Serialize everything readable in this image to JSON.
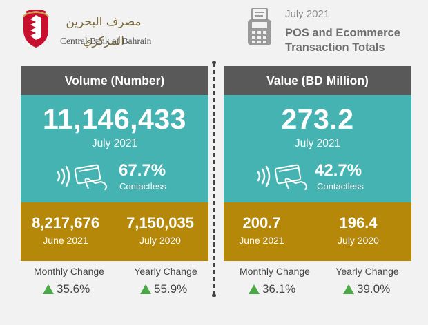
{
  "header": {
    "bank_name_ar": "مصرف البحرين المركزي",
    "bank_name_en": "Central Bank of Bahrain",
    "period": "July 2021",
    "title": "POS and Ecommerce Transaction Totals"
  },
  "colors": {
    "header_gray": "#595959",
    "teal": "#45b3b1",
    "gold": "#b5880a",
    "up_green": "#4aa847"
  },
  "volume": {
    "heading": "Volume (Number)",
    "main_value": "11,146,433",
    "main_period": "July 2021",
    "contactless_pct": "67.7%",
    "contactless_label": "Contactless",
    "compare_1_value": "8,217,676",
    "compare_1_period": "June 2021",
    "compare_2_value": "7,150,035",
    "compare_2_period": "July 2020",
    "monthly_label": "Monthly Change",
    "monthly_value": "35.6%",
    "yearly_label": "Yearly Change",
    "yearly_value": "55.9%"
  },
  "value": {
    "heading": "Value (BD Million)",
    "main_value": "273.2",
    "main_period": "July 2021",
    "contactless_pct": "42.7%",
    "contactless_label": "Contactless",
    "compare_1_value": "200.7",
    "compare_1_period": "June 2021",
    "compare_2_value": "196.4",
    "compare_2_period": "July 2020",
    "monthly_label": "Monthly Change",
    "monthly_value": "36.1%",
    "yearly_label": "Yearly Change",
    "yearly_value": "39.0%"
  }
}
